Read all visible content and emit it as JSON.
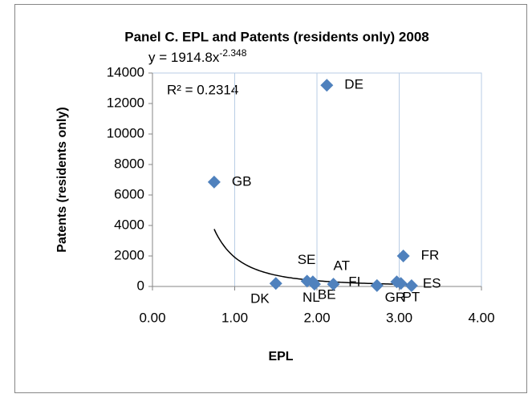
{
  "chart_data": {
    "type": "scatter",
    "title": "Panel C. EPL and Patents (residents only) 2008",
    "x_label": "EPL",
    "y_label": "Patents (residents only)",
    "equation": "y = 1914.8x",
    "equation_exponent": "-2.348",
    "r_squared": "R² = 0.2314",
    "labels": [
      "GB",
      "DE",
      "FR",
      "DK",
      "SE",
      "NL",
      "BE",
      "AT",
      "FI",
      "GR",
      "PT",
      "ES"
    ],
    "x": [
      0.75,
      2.12,
      3.05,
      1.5,
      1.88,
      1.95,
      1.97,
      2.2,
      2.73,
      2.97,
      3.02,
      3.15
    ],
    "values": [
      6850,
      13200,
      2000,
      200,
      350,
      300,
      150,
      150,
      60,
      300,
      200,
      50
    ],
    "color": "#4f81bd",
    "trendline": {
      "a": 1914.8,
      "b": -2.348,
      "color": "#000000"
    },
    "xlim": [
      0,
      4
    ],
    "xticks": [
      {
        "value": 0,
        "label": "0.00"
      },
      {
        "value": 1,
        "label": "1.00"
      },
      {
        "value": 2,
        "label": "2.00"
      },
      {
        "value": 3,
        "label": "3.00"
      },
      {
        "value": 4,
        "label": "4.00"
      }
    ],
    "ylim": [
      0,
      14000
    ],
    "yticks": [
      0,
      2000,
      4000,
      6000,
      8000,
      10000,
      12000,
      14000
    ],
    "grid": "x"
  }
}
